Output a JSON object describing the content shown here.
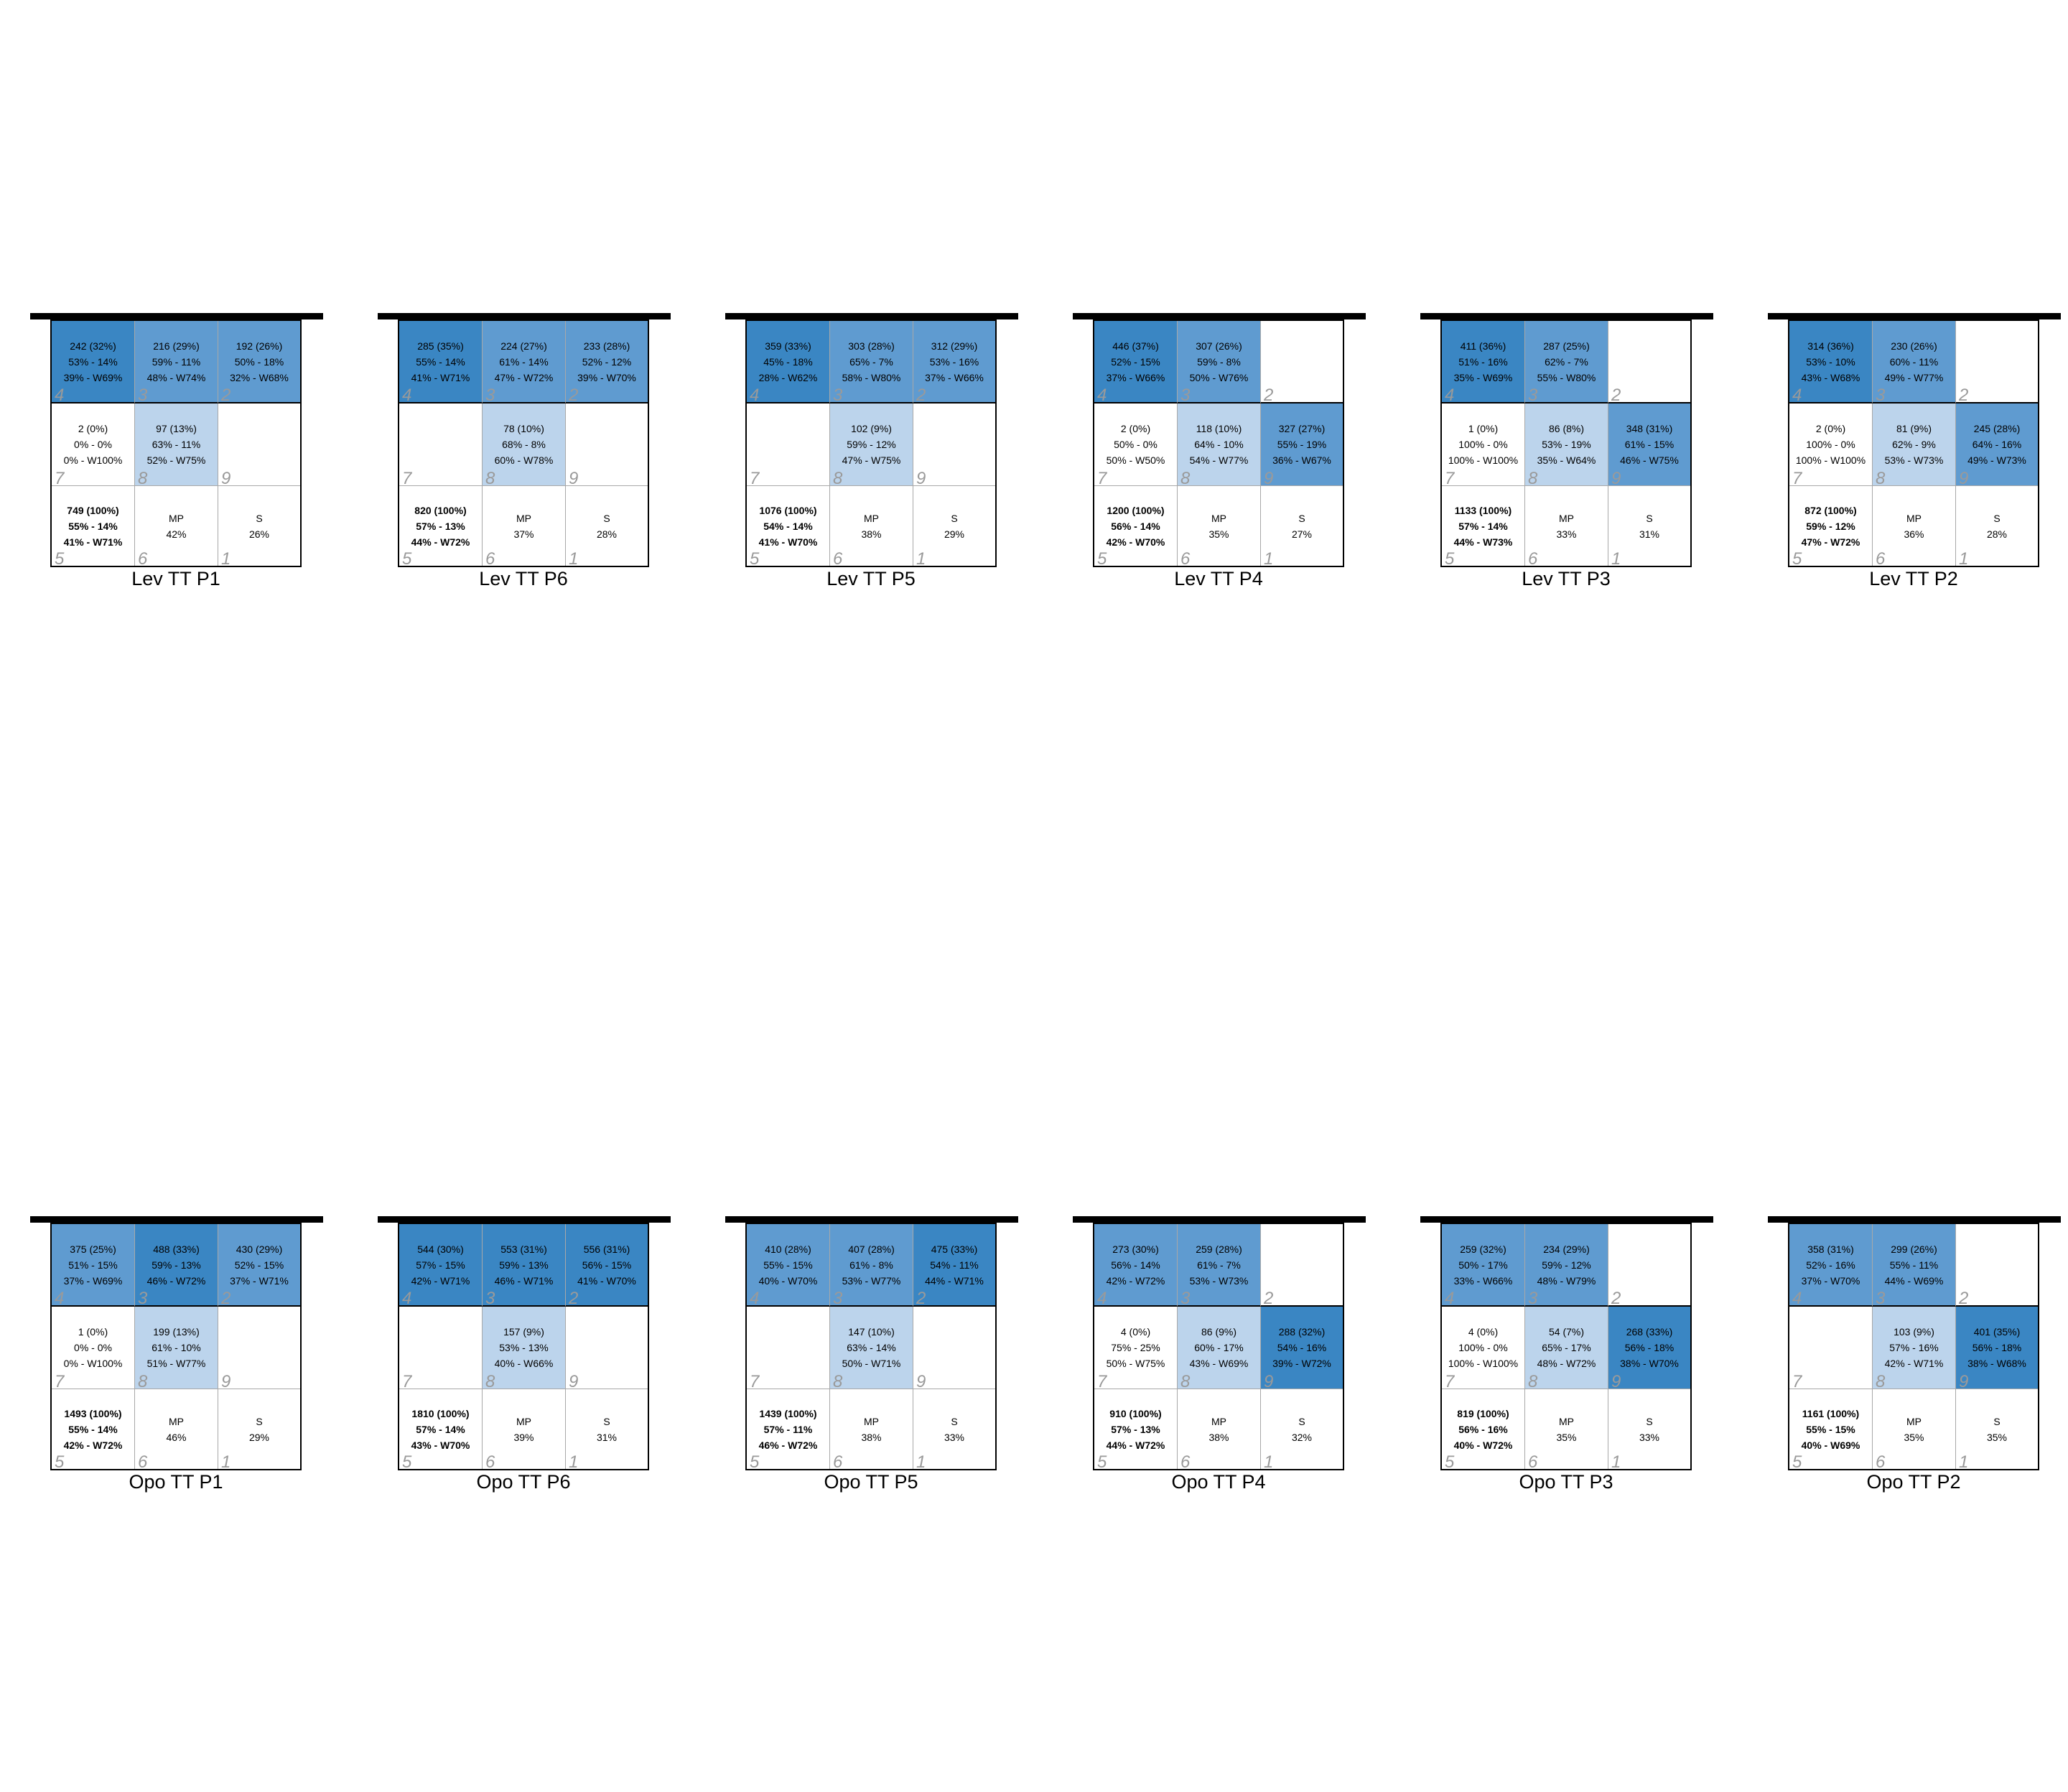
{
  "courts": [
    {
      "title": "Lev TT P1",
      "cells": [
        {
          "lines": [
            "242 (32%)",
            "53% - 14%",
            "39% - W69%"
          ],
          "num": "4",
          "level": 3
        },
        {
          "lines": [
            "216 (29%)",
            "59% - 11%",
            "48% - W74%"
          ],
          "num": "3",
          "level": 2
        },
        {
          "lines": [
            "192 (26%)",
            "50% - 18%",
            "32% - W68%"
          ],
          "num": "2",
          "level": 2
        },
        {
          "lines": [
            "2 (0%)",
            "0% - 0%",
            "0% - W100%"
          ],
          "num": "7",
          "level": 0
        },
        {
          "lines": [
            "97 (13%)",
            "63% - 11%",
            "52% - W75%"
          ],
          "num": "8",
          "level": 1
        },
        {
          "lines": [],
          "num": "9",
          "level": 0
        },
        {
          "lines": [
            "749 (100%)",
            "55% - 14%",
            "41% - W71%"
          ],
          "num": "5",
          "level": 0,
          "bold": true
        },
        {
          "lines": [
            "MP",
            "42%"
          ],
          "num": "6",
          "level": 0
        },
        {
          "lines": [
            "S",
            "26%"
          ],
          "num": "1",
          "level": 0
        }
      ]
    },
    {
      "title": "Lev TT P6",
      "cells": [
        {
          "lines": [
            "285 (35%)",
            "55% - 14%",
            "41% - W71%"
          ],
          "num": "4",
          "level": 3
        },
        {
          "lines": [
            "224 (27%)",
            "61% - 14%",
            "47% - W72%"
          ],
          "num": "3",
          "level": 2
        },
        {
          "lines": [
            "233 (28%)",
            "52% - 12%",
            "39% - W70%"
          ],
          "num": "2",
          "level": 2
        },
        {
          "lines": [],
          "num": "7",
          "level": 0
        },
        {
          "lines": [
            "78 (10%)",
            "68% - 8%",
            "60% - W78%"
          ],
          "num": "8",
          "level": 1
        },
        {
          "lines": [],
          "num": "9",
          "level": 0
        },
        {
          "lines": [
            "820 (100%)",
            "57% - 13%",
            "44% - W72%"
          ],
          "num": "5",
          "level": 0,
          "bold": true
        },
        {
          "lines": [
            "MP",
            "37%"
          ],
          "num": "6",
          "level": 0
        },
        {
          "lines": [
            "S",
            "28%"
          ],
          "num": "1",
          "level": 0
        }
      ]
    },
    {
      "title": "Lev TT P5",
      "cells": [
        {
          "lines": [
            "359 (33%)",
            "45% - 18%",
            "28% - W62%"
          ],
          "num": "4",
          "level": 3
        },
        {
          "lines": [
            "303 (28%)",
            "65% - 7%",
            "58% - W80%"
          ],
          "num": "3",
          "level": 2
        },
        {
          "lines": [
            "312 (29%)",
            "53% - 16%",
            "37% - W66%"
          ],
          "num": "2",
          "level": 2
        },
        {
          "lines": [],
          "num": "7",
          "level": 0
        },
        {
          "lines": [
            "102 (9%)",
            "59% - 12%",
            "47% - W75%"
          ],
          "num": "8",
          "level": 1
        },
        {
          "lines": [],
          "num": "9",
          "level": 0
        },
        {
          "lines": [
            "1076 (100%)",
            "54% - 14%",
            "41% - W70%"
          ],
          "num": "5",
          "level": 0,
          "bold": true
        },
        {
          "lines": [
            "MP",
            "38%"
          ],
          "num": "6",
          "level": 0
        },
        {
          "lines": [
            "S",
            "29%"
          ],
          "num": "1",
          "level": 0
        }
      ]
    },
    {
      "title": "Lev TT P4",
      "cells": [
        {
          "lines": [
            "446 (37%)",
            "52% - 15%",
            "37% - W66%"
          ],
          "num": "4",
          "level": 3
        },
        {
          "lines": [
            "307 (26%)",
            "59% - 8%",
            "50% - W76%"
          ],
          "num": "3",
          "level": 2
        },
        {
          "lines": [],
          "num": "2",
          "level": 0
        },
        {
          "lines": [
            "2 (0%)",
            "50% - 0%",
            "50% - W50%"
          ],
          "num": "7",
          "level": 0
        },
        {
          "lines": [
            "118 (10%)",
            "64% - 10%",
            "54% - W77%"
          ],
          "num": "8",
          "level": 1
        },
        {
          "lines": [
            "327 (27%)",
            "55% - 19%",
            "36% - W67%"
          ],
          "num": "9",
          "level": 2
        },
        {
          "lines": [
            "1200 (100%)",
            "56% - 14%",
            "42% - W70%"
          ],
          "num": "5",
          "level": 0,
          "bold": true
        },
        {
          "lines": [
            "MP",
            "35%"
          ],
          "num": "6",
          "level": 0
        },
        {
          "lines": [
            "S",
            "27%"
          ],
          "num": "1",
          "level": 0
        }
      ]
    },
    {
      "title": "Lev TT P3",
      "cells": [
        {
          "lines": [
            "411 (36%)",
            "51% - 16%",
            "35% - W69%"
          ],
          "num": "4",
          "level": 3
        },
        {
          "lines": [
            "287 (25%)",
            "62% - 7%",
            "55% - W80%"
          ],
          "num": "3",
          "level": 2
        },
        {
          "lines": [],
          "num": "2",
          "level": 0
        },
        {
          "lines": [
            "1 (0%)",
            "100% - 0%",
            "100% - W100%"
          ],
          "num": "7",
          "level": 0
        },
        {
          "lines": [
            "86 (8%)",
            "53% - 19%",
            "35% - W64%"
          ],
          "num": "8",
          "level": 1
        },
        {
          "lines": [
            "348 (31%)",
            "61% - 15%",
            "46% - W75%"
          ],
          "num": "9",
          "level": 2
        },
        {
          "lines": [
            "1133 (100%)",
            "57% - 14%",
            "44% - W73%"
          ],
          "num": "5",
          "level": 0,
          "bold": true
        },
        {
          "lines": [
            "MP",
            "33%"
          ],
          "num": "6",
          "level": 0
        },
        {
          "lines": [
            "S",
            "31%"
          ],
          "num": "1",
          "level": 0
        }
      ]
    },
    {
      "title": "Lev TT P2",
      "cells": [
        {
          "lines": [
            "314 (36%)",
            "53% - 10%",
            "43% - W68%"
          ],
          "num": "4",
          "level": 3
        },
        {
          "lines": [
            "230 (26%)",
            "60% - 11%",
            "49% - W77%"
          ],
          "num": "3",
          "level": 2
        },
        {
          "lines": [],
          "num": "2",
          "level": 0
        },
        {
          "lines": [
            "2 (0%)",
            "100% - 0%",
            "100% - W100%"
          ],
          "num": "7",
          "level": 0
        },
        {
          "lines": [
            "81 (9%)",
            "62% - 9%",
            "53% - W73%"
          ],
          "num": "8",
          "level": 1
        },
        {
          "lines": [
            "245 (28%)",
            "64% - 16%",
            "49% - W73%"
          ],
          "num": "9",
          "level": 2
        },
        {
          "lines": [
            "872 (100%)",
            "59% - 12%",
            "47% - W72%"
          ],
          "num": "5",
          "level": 0,
          "bold": true
        },
        {
          "lines": [
            "MP",
            "36%"
          ],
          "num": "6",
          "level": 0
        },
        {
          "lines": [
            "S",
            "28%"
          ],
          "num": "1",
          "level": 0
        }
      ]
    },
    {
      "title": "Opo TT P1",
      "cells": [
        {
          "lines": [
            "375 (25%)",
            "51% - 15%",
            "37% - W69%"
          ],
          "num": "4",
          "level": 2
        },
        {
          "lines": [
            "488 (33%)",
            "59% - 13%",
            "46% - W72%"
          ],
          "num": "3",
          "level": 3
        },
        {
          "lines": [
            "430 (29%)",
            "52% - 15%",
            "37% - W71%"
          ],
          "num": "2",
          "level": 2
        },
        {
          "lines": [
            "1 (0%)",
            "0% - 0%",
            "0% - W100%"
          ],
          "num": "7",
          "level": 0
        },
        {
          "lines": [
            "199 (13%)",
            "61% - 10%",
            "51% - W77%"
          ],
          "num": "8",
          "level": 1
        },
        {
          "lines": [],
          "num": "9",
          "level": 0
        },
        {
          "lines": [
            "1493 (100%)",
            "55% - 14%",
            "42% - W72%"
          ],
          "num": "5",
          "level": 0,
          "bold": true
        },
        {
          "lines": [
            "MP",
            "46%"
          ],
          "num": "6",
          "level": 0
        },
        {
          "lines": [
            "S",
            "29%"
          ],
          "num": "1",
          "level": 0
        }
      ]
    },
    {
      "title": "Opo TT P6",
      "cells": [
        {
          "lines": [
            "544 (30%)",
            "57% - 15%",
            "42% - W71%"
          ],
          "num": "4",
          "level": 3
        },
        {
          "lines": [
            "553 (31%)",
            "59% - 13%",
            "46% - W71%"
          ],
          "num": "3",
          "level": 3
        },
        {
          "lines": [
            "556 (31%)",
            "56% - 15%",
            "41% - W70%"
          ],
          "num": "2",
          "level": 3
        },
        {
          "lines": [],
          "num": "7",
          "level": 0
        },
        {
          "lines": [
            "157 (9%)",
            "53% - 13%",
            "40% - W66%"
          ],
          "num": "8",
          "level": 1
        },
        {
          "lines": [],
          "num": "9",
          "level": 0
        },
        {
          "lines": [
            "1810 (100%)",
            "57% - 14%",
            "43% - W70%"
          ],
          "num": "5",
          "level": 0,
          "bold": true
        },
        {
          "lines": [
            "MP",
            "39%"
          ],
          "num": "6",
          "level": 0
        },
        {
          "lines": [
            "S",
            "31%"
          ],
          "num": "1",
          "level": 0
        }
      ]
    },
    {
      "title": "Opo TT P5",
      "cells": [
        {
          "lines": [
            "410 (28%)",
            "55% - 15%",
            "40% - W70%"
          ],
          "num": "4",
          "level": 2
        },
        {
          "lines": [
            "407 (28%)",
            "61% - 8%",
            "53% - W77%"
          ],
          "num": "3",
          "level": 2
        },
        {
          "lines": [
            "475 (33%)",
            "54% - 11%",
            "44% - W71%"
          ],
          "num": "2",
          "level": 3
        },
        {
          "lines": [],
          "num": "7",
          "level": 0
        },
        {
          "lines": [
            "147 (10%)",
            "63% - 14%",
            "50% - W71%"
          ],
          "num": "8",
          "level": 1
        },
        {
          "lines": [],
          "num": "9",
          "level": 0
        },
        {
          "lines": [
            "1439 (100%)",
            "57% - 11%",
            "46% - W72%"
          ],
          "num": "5",
          "level": 0,
          "bold": true
        },
        {
          "lines": [
            "MP",
            "38%"
          ],
          "num": "6",
          "level": 0
        },
        {
          "lines": [
            "S",
            "33%"
          ],
          "num": "1",
          "level": 0
        }
      ]
    },
    {
      "title": "Opo TT P4",
      "cells": [
        {
          "lines": [
            "273 (30%)",
            "56% - 14%",
            "42% - W72%"
          ],
          "num": "4",
          "level": 2
        },
        {
          "lines": [
            "259 (28%)",
            "61% - 7%",
            "53% - W73%"
          ],
          "num": "3",
          "level": 2
        },
        {
          "lines": [],
          "num": "2",
          "level": 0
        },
        {
          "lines": [
            "4 (0%)",
            "75% - 25%",
            "50% - W75%"
          ],
          "num": "7",
          "level": 0
        },
        {
          "lines": [
            "86 (9%)",
            "60% - 17%",
            "43% - W69%"
          ],
          "num": "8",
          "level": 1
        },
        {
          "lines": [
            "288 (32%)",
            "54% - 16%",
            "39% - W72%"
          ],
          "num": "9",
          "level": 3
        },
        {
          "lines": [
            "910 (100%)",
            "57% - 13%",
            "44% - W72%"
          ],
          "num": "5",
          "level": 0,
          "bold": true
        },
        {
          "lines": [
            "MP",
            "38%"
          ],
          "num": "6",
          "level": 0
        },
        {
          "lines": [
            "S",
            "32%"
          ],
          "num": "1",
          "level": 0
        }
      ]
    },
    {
      "title": "Opo TT P3",
      "cells": [
        {
          "lines": [
            "259 (32%)",
            "50% - 17%",
            "33% - W66%"
          ],
          "num": "4",
          "level": 2
        },
        {
          "lines": [
            "234 (29%)",
            "59% - 12%",
            "48% - W79%"
          ],
          "num": "3",
          "level": 2
        },
        {
          "lines": [],
          "num": "2",
          "level": 0
        },
        {
          "lines": [
            "4 (0%)",
            "100% - 0%",
            "100% - W100%"
          ],
          "num": "7",
          "level": 0
        },
        {
          "lines": [
            "54 (7%)",
            "65% - 17%",
            "48% - W72%"
          ],
          "num": "8",
          "level": 1
        },
        {
          "lines": [
            "268 (33%)",
            "56% - 18%",
            "38% - W70%"
          ],
          "num": "9",
          "level": 3
        },
        {
          "lines": [
            "819 (100%)",
            "56% - 16%",
            "40% - W72%"
          ],
          "num": "5",
          "level": 0,
          "bold": true
        },
        {
          "lines": [
            "MP",
            "35%"
          ],
          "num": "6",
          "level": 0
        },
        {
          "lines": [
            "S",
            "33%"
          ],
          "num": "1",
          "level": 0
        }
      ]
    },
    {
      "title": "Opo TT P2",
      "cells": [
        {
          "lines": [
            "358 (31%)",
            "52% - 16%",
            "37% - W70%"
          ],
          "num": "4",
          "level": 2
        },
        {
          "lines": [
            "299 (26%)",
            "55% - 11%",
            "44% - W69%"
          ],
          "num": "3",
          "level": 2
        },
        {
          "lines": [],
          "num": "2",
          "level": 0
        },
        {
          "lines": [],
          "num": "7",
          "level": 0
        },
        {
          "lines": [
            "103 (9%)",
            "57% - 16%",
            "42% - W71%"
          ],
          "num": "8",
          "level": 1
        },
        {
          "lines": [
            "401 (35%)",
            "56% - 18%",
            "38% - W68%"
          ],
          "num": "9",
          "level": 3
        },
        {
          "lines": [
            "1161 (100%)",
            "55% - 15%",
            "40% - W69%"
          ],
          "num": "5",
          "level": 0,
          "bold": true
        },
        {
          "lines": [
            "MP",
            "35%"
          ],
          "num": "6",
          "level": 0
        },
        {
          "lines": [
            "S",
            "35%"
          ],
          "num": "1",
          "level": 0
        }
      ]
    }
  ]
}
